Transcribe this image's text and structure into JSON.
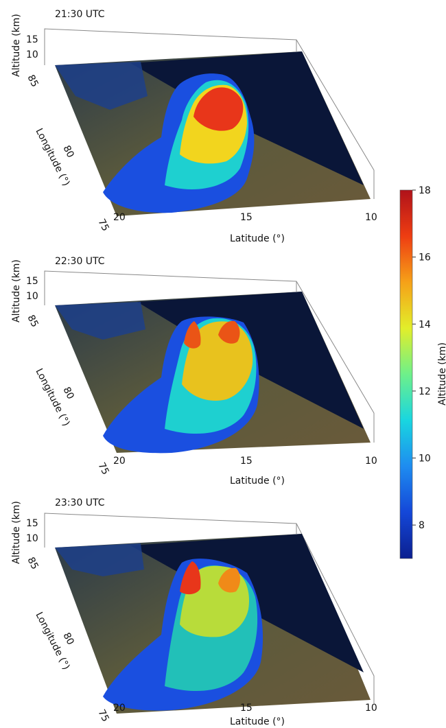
{
  "colorbar": {
    "label": "Altitude (km)",
    "min": 7,
    "max": 18,
    "ticks": [
      "8",
      "10",
      "12",
      "14",
      "16",
      "18"
    ],
    "colors": [
      "#0b1f8f",
      "#1447d8",
      "#1e8cf0",
      "#19d6e0",
      "#6ef08a",
      "#e2ee2a",
      "#f6a118",
      "#ee3d12",
      "#b0121a"
    ]
  },
  "chart_data": [
    {
      "type": "surface3d",
      "title": "21:30 UTC",
      "xlabel": "Latitude (°)",
      "ylabel": "Longitude (°)",
      "zlabel": "Altitude (km)",
      "x_ticks": [
        "20",
        "15",
        "10"
      ],
      "y_ticks": [
        "75",
        "80",
        "85"
      ],
      "z_ticks": [
        "10",
        "15"
      ],
      "xlim": [
        10,
        20
      ],
      "ylim": [
        75,
        85
      ],
      "zlim": [
        0,
        15
      ],
      "colorbar_range": [
        7,
        18
      ],
      "peak_altitude_km": 17.5
    },
    {
      "type": "surface3d",
      "title": "22:30 UTC",
      "xlabel": "Latitude (°)",
      "ylabel": "Longitude (°)",
      "zlabel": "Altitude (km)",
      "x_ticks": [
        "20",
        "15",
        "10"
      ],
      "y_ticks": [
        "75",
        "80",
        "85"
      ],
      "z_ticks": [
        "10",
        "15"
      ],
      "xlim": [
        10,
        20
      ],
      "ylim": [
        75,
        85
      ],
      "zlim": [
        0,
        15
      ],
      "colorbar_range": [
        7,
        18
      ],
      "peak_altitude_km": 16.5
    },
    {
      "type": "surface3d",
      "title": "23:30 UTC",
      "xlabel": "Latitude (°)",
      "ylabel": "Longitude (°)",
      "zlabel": "Altitude (km)",
      "x_ticks": [
        "20",
        "15",
        "10"
      ],
      "y_ticks": [
        "75",
        "80",
        "85"
      ],
      "z_ticks": [
        "10",
        "15"
      ],
      "xlim": [
        10,
        20
      ],
      "ylim": [
        75,
        85
      ],
      "zlim": [
        0,
        15
      ],
      "colorbar_range": [
        7,
        18
      ],
      "peak_altitude_km": 16.5
    }
  ]
}
